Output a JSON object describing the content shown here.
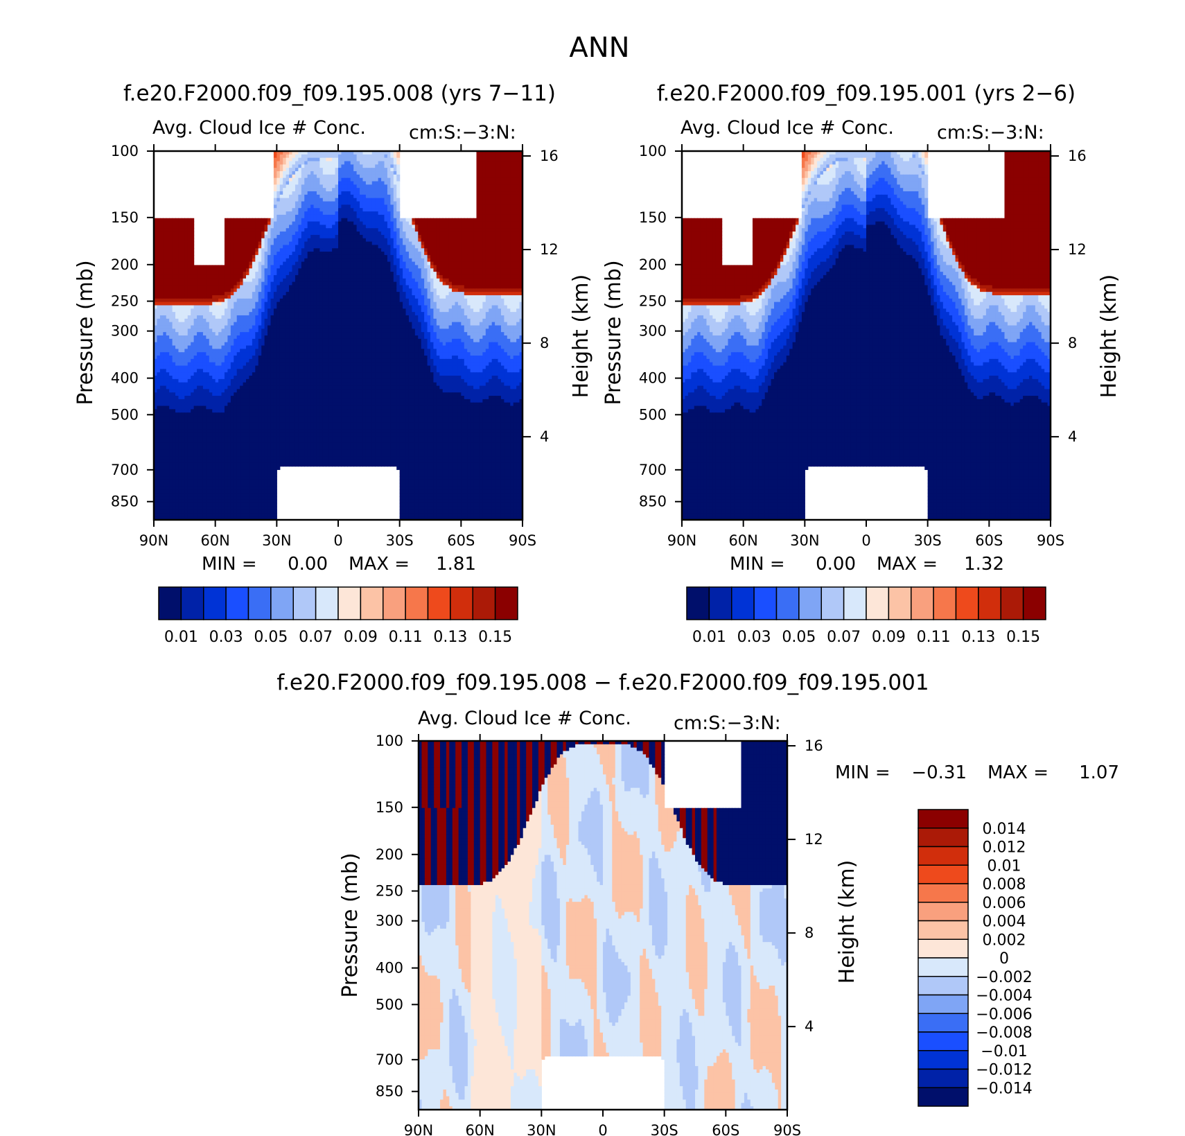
{
  "main_title": "ANN",
  "colors": {
    "abs_scale": [
      "#000f6b",
      "#0022a8",
      "#0033d6",
      "#1a4fff",
      "#3a6ef5",
      "#7fa5f5",
      "#b0c8f8",
      "#d8e8fb",
      "#fde6d8",
      "#fcc3a6",
      "#f9a07e",
      "#f6774b",
      "#ee4a1c",
      "#d12e0c",
      "#ab1a07",
      "#8b0000"
    ],
    "diff_scale": [
      "#000f6b",
      "#0022a8",
      "#0033d6",
      "#1a4fff",
      "#3a6ef5",
      "#7fa5f5",
      "#b0c8f8",
      "#d8e8fb",
      "#fde6d8",
      "#fcc3a6",
      "#f9a07e",
      "#f6774b",
      "#ee4a1c",
      "#d12e0c",
      "#ab1a07",
      "#8b0000"
    ]
  },
  "chart_data": [
    {
      "type": "heatmap",
      "title": "f.e20.F2000.f09_f09.195.008 (yrs 7-11)",
      "left_title": "Avg. Cloud Ice # Conc.",
      "right_title": "cm:S:-3:N:",
      "ylabel": "Pressure (mb)",
      "y2label": "Height (km)",
      "xticks": [
        "90N",
        "60N",
        "30N",
        "0",
        "30S",
        "60S",
        "90S"
      ],
      "yticks": [
        "100",
        "150",
        "200",
        "250",
        "300",
        "400",
        "500",
        "700",
        "850"
      ],
      "y2ticks": [
        "16",
        "12",
        "8",
        "4"
      ],
      "min_label": "MIN =",
      "min_value": "0.00",
      "max_label": "MAX =",
      "max_value": "1.81",
      "colorbar_labels": [
        "0.01",
        "0.03",
        "0.05",
        "0.07",
        "0.09",
        "0.11",
        "0.13",
        "0.15"
      ]
    },
    {
      "type": "heatmap",
      "title": "f.e20.F2000.f09_f09.195.001 (yrs 2-6)",
      "left_title": "Avg. Cloud Ice # Conc.",
      "right_title": "cm:S:-3:N:",
      "ylabel": "Pressure (mb)",
      "y2label": "Height (km)",
      "xticks": [
        "90N",
        "60N",
        "30N",
        "0",
        "30S",
        "60S",
        "90S"
      ],
      "yticks": [
        "100",
        "150",
        "200",
        "250",
        "300",
        "400",
        "500",
        "700",
        "850"
      ],
      "y2ticks": [
        "16",
        "12",
        "8",
        "4"
      ],
      "min_label": "MIN =",
      "min_value": "0.00",
      "max_label": "MAX =",
      "max_value": "1.32",
      "colorbar_labels": [
        "0.01",
        "0.03",
        "0.05",
        "0.07",
        "0.09",
        "0.11",
        "0.13",
        "0.15"
      ]
    },
    {
      "type": "heatmap",
      "title": "f.e20.F2000.f09_f09.195.008 - f.e20.F2000.f09_f09.195.001",
      "left_title": "Avg. Cloud Ice # Conc.",
      "right_title": "cm:S:-3:N:",
      "ylabel": "Pressure (mb)",
      "y2label": "Height (km)",
      "xticks": [
        "90N",
        "60N",
        "30N",
        "0",
        "30S",
        "60S",
        "90S"
      ],
      "yticks": [
        "100",
        "150",
        "200",
        "250",
        "300",
        "400",
        "500",
        "700",
        "850"
      ],
      "y2ticks": [
        "16",
        "12",
        "8",
        "4"
      ],
      "min_label": "MIN =",
      "min_value": "-0.31",
      "max_label": "MAX =",
      "max_value": "1.07",
      "colorbar_labels": [
        "0.014",
        "0.012",
        "0.01",
        "0.008",
        "0.006",
        "0.004",
        "0.002",
        "0",
        "-0.002",
        "-0.004",
        "-0.006",
        "-0.008",
        "-0.01",
        "-0.012",
        "-0.014"
      ]
    }
  ]
}
